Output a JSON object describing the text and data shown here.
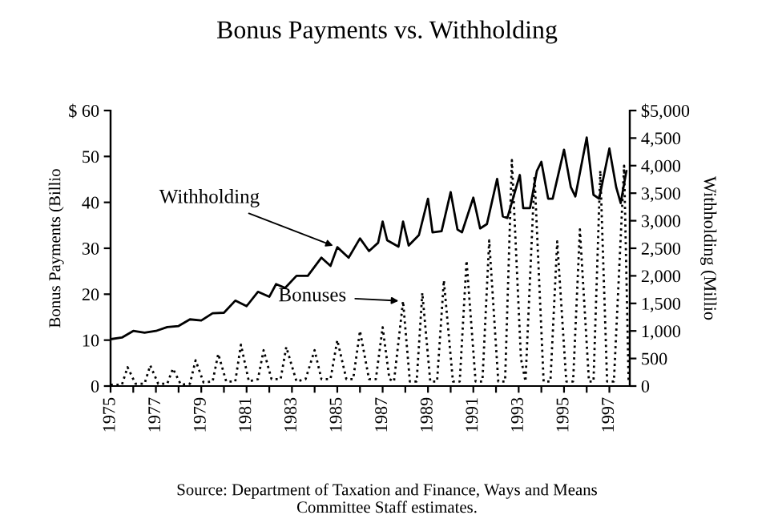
{
  "chart_data": {
    "type": "line",
    "title": "Bonus Payments vs. Withholding",
    "ylabel": "Bonus Payments (Billio",
    "y2label": "Withholding (Millio",
    "series": [
      {
        "axis": "y2",
        "color": "#000000",
        "line_style": "solid",
        "x": [
          1975.0,
          1975.5,
          1976.0,
          1976.5,
          1977.0,
          1977.5,
          1978.0,
          1978.5,
          1979.0,
          1979.5,
          1980.0,
          1980.5,
          1981.0,
          1981.5,
          1982.0,
          1982.3,
          1982.7,
          1983.2,
          1983.7,
          1984.3,
          1984.7,
          1985.0,
          1985.5,
          1986.0,
          1986.4,
          1986.8,
          1987.0,
          1987.2,
          1987.7,
          1987.9,
          1988.15,
          1988.6,
          1989.0,
          1989.2,
          1989.6,
          1990.0,
          1990.3,
          1990.5,
          1991.0,
          1991.3,
          1991.6,
          1992.05,
          1992.3,
          1992.5,
          1993.05,
          1993.2,
          1993.5,
          1993.8,
          1994.0,
          1994.3,
          1994.5,
          1995.0,
          1995.3,
          1995.5,
          1996.0,
          1996.3,
          1996.55,
          1997.0,
          1997.3,
          1997.5,
          1997.75
        ],
        "values": [
          850,
          880,
          1000,
          970,
          1000,
          1070,
          1090,
          1210,
          1190,
          1320,
          1330,
          1550,
          1450,
          1710,
          1620,
          1850,
          1780,
          2000,
          2000,
          2330,
          2180,
          2520,
          2330,
          2680,
          2450,
          2600,
          2985,
          2645,
          2530,
          2985,
          2550,
          2740,
          3400,
          2790,
          2810,
          3520,
          2840,
          2790,
          3420,
          2860,
          2940,
          3760,
          3080,
          3050,
          3830,
          3230,
          3230,
          3900,
          4070,
          3400,
          3400,
          4290,
          3610,
          3440,
          4510,
          3470,
          3400,
          4310,
          3610,
          3320,
          3900
        ]
      },
      {
        "axis": "y",
        "color": "#000000",
        "line_style": "dotted",
        "x": [
          1975.0,
          1975.5,
          1975.75,
          1976.1,
          1976.5,
          1976.75,
          1977.1,
          1977.5,
          1977.75,
          1978.1,
          1978.5,
          1978.75,
          1979.1,
          1979.5,
          1979.75,
          1980.1,
          1980.5,
          1980.75,
          1981.1,
          1981.5,
          1981.75,
          1982.1,
          1982.5,
          1982.75,
          1983.2,
          1983.6,
          1984.0,
          1984.3,
          1984.7,
          1985.0,
          1985.4,
          1985.7,
          1986.0,
          1986.4,
          1986.7,
          1987.0,
          1987.3,
          1987.5,
          1987.9,
          1988.2,
          1988.5,
          1988.75,
          1989.1,
          1989.4,
          1989.7,
          1990.1,
          1990.4,
          1990.7,
          1991.1,
          1991.4,
          1991.7,
          1992.1,
          1992.4,
          1992.7,
          1993.1,
          1993.3,
          1993.7,
          1994.1,
          1994.4,
          1994.7,
          1995.1,
          1995.4,
          1995.7,
          1996.1,
          1996.3,
          1996.6,
          1996.9,
          1997.2,
          1997.65,
          1997.85
        ],
        "values": [
          0.3,
          0.3,
          4.1,
          0.5,
          0.5,
          4.5,
          0.5,
          0.5,
          3.8,
          0.3,
          0.5,
          5.6,
          0.8,
          1,
          7,
          1,
          1,
          9,
          1,
          1.5,
          7.8,
          1.5,
          1.5,
          8.5,
          1,
          1.5,
          7.8,
          1.5,
          1.5,
          10,
          1.5,
          1.5,
          12,
          1.5,
          1.5,
          12.8,
          1.5,
          1,
          18.5,
          1,
          1,
          20.3,
          1,
          1,
          23,
          1,
          1,
          27.3,
          1,
          1,
          31.7,
          1,
          1,
          49.2,
          6,
          1,
          45.7,
          1,
          1,
          31.5,
          1,
          1,
          34.1,
          1,
          1,
          46.9,
          1,
          1,
          48,
          1
        ]
      }
    ],
    "xlim": [
      1975,
      1997.9
    ],
    "xticks": [
      1975,
      {
        "value": 1976,
        "label": null
      },
      1977,
      {
        "value": 1978,
        "label": null
      },
      1979,
      {
        "value": 1980,
        "label": null
      },
      1981,
      {
        "value": 1982,
        "label": null
      },
      1983,
      {
        "value": 1984,
        "label": null
      },
      1985,
      {
        "value": 1986,
        "label": null
      },
      1987,
      {
        "value": 1988,
        "label": null
      },
      1989,
      {
        "value": 1990,
        "label": null
      },
      1991,
      {
        "value": 1992,
        "label": null
      },
      1993,
      {
        "value": 1994,
        "label": null
      },
      1995,
      {
        "value": 1996,
        "label": null
      },
      1997
    ],
    "ylim": [
      0,
      60
    ],
    "yticks": [
      0,
      10,
      20,
      30,
      40,
      50,
      {
        "value": 60,
        "label": "$ 60"
      }
    ],
    "y2lim": [
      0,
      5000
    ],
    "y2ticks": [
      0,
      500,
      {
        "value": 1000,
        "label": "1,000"
      },
      {
        "value": 1500,
        "label": "1,500"
      },
      {
        "value": 2000,
        "label": "2,000"
      },
      {
        "value": 2500,
        "label": "2,500"
      },
      {
        "value": 3000,
        "label": "3,000"
      },
      {
        "value": 3500,
        "label": "3,500"
      },
      {
        "value": 4000,
        "label": "4,000"
      },
      {
        "value": 4500,
        "label": "4,500"
      },
      {
        "value": 5000,
        "label": "$5,000"
      }
    ],
    "grid": false,
    "legend": false,
    "annotations": [
      {
        "text": "Withholding",
        "x": 1985.0,
        "y": 30.2
      },
      {
        "text": "Bonuses",
        "x": 1987.9,
        "y": 18.5
      },
      "Source: Department of Taxation and Finance, Ways and Means\nCommittee Staff estimates."
    ]
  }
}
